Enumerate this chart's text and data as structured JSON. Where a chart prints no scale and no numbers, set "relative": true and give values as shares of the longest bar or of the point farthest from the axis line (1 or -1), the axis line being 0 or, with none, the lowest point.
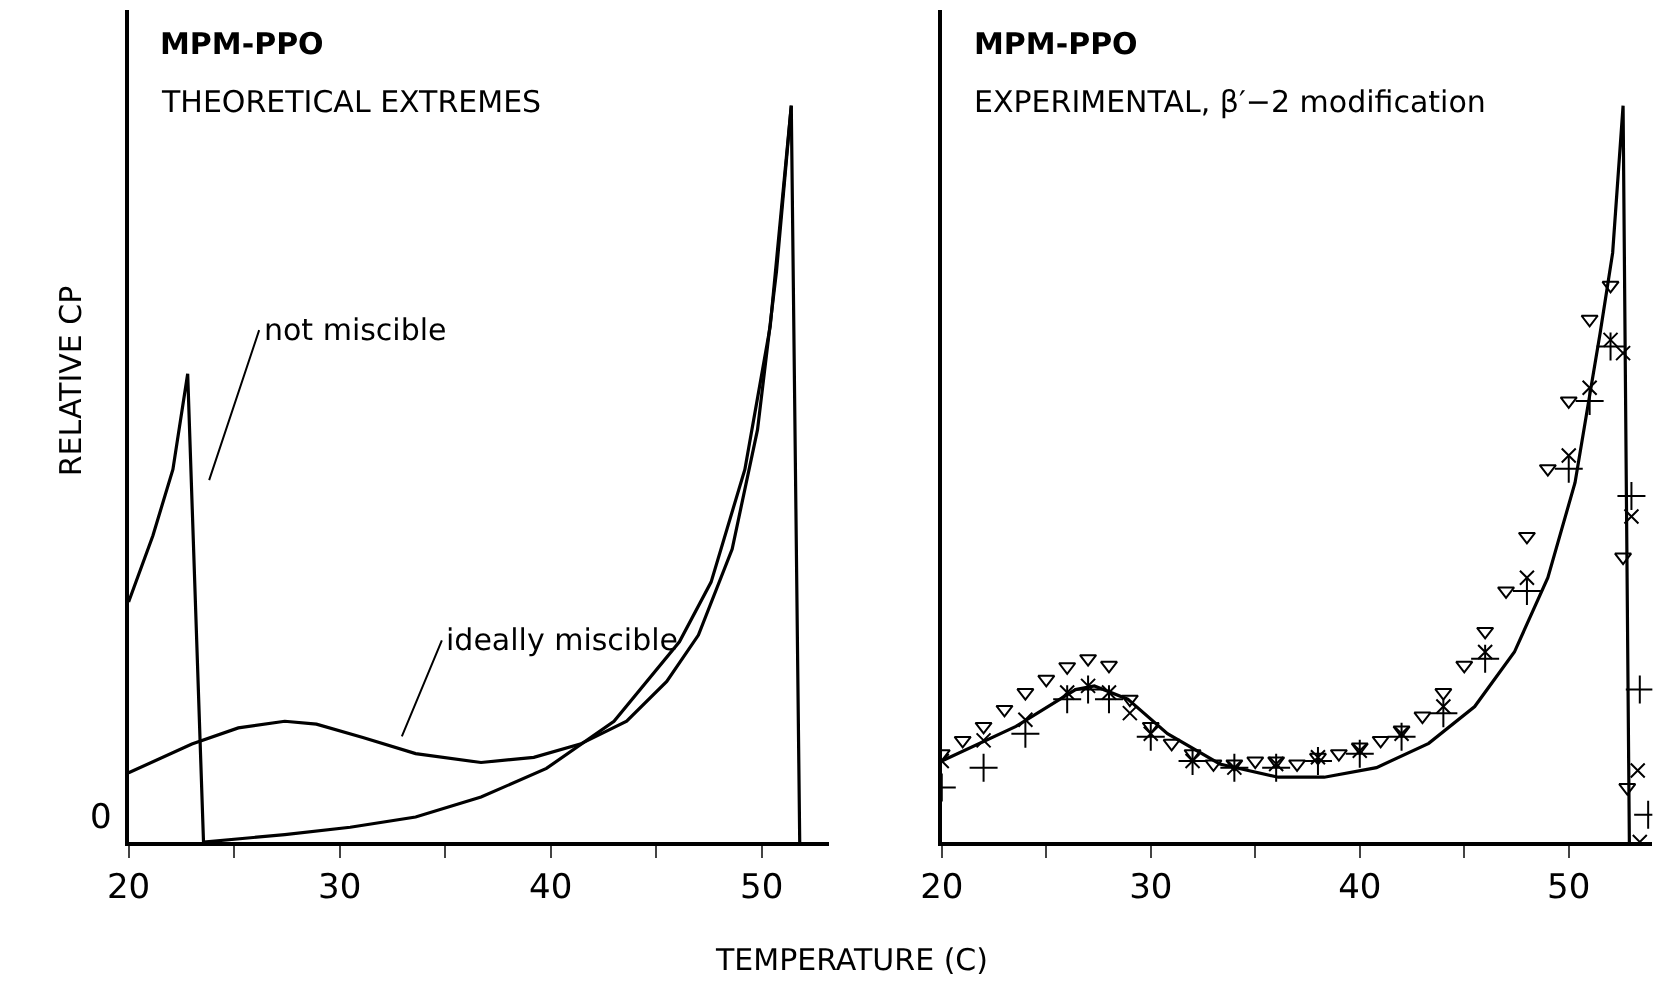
{
  "chart_data": [
    {
      "type": "line",
      "title": "MPM-PPO",
      "subtitle": "THEORETICAL EXTREMES",
      "xlabel": "TEMPERATURE (C)",
      "ylabel": "RELATIVE CP",
      "relative": true,
      "tick_labels": "x",
      "xlim": [
        20,
        53.2
      ],
      "xticks": [
        20,
        {
          "value": 25,
          "label": null
        },
        30,
        {
          "value": 35,
          "label": null
        },
        40,
        {
          "value": 45,
          "label": null
        },
        50
      ],
      "series": [
        {
          "color": "#000000",
          "marker": "none",
          "x": [
            20,
            21.15,
            22.1,
            22.8,
            23.55,
            27.4,
            30.5,
            33.6,
            36.7,
            39.8,
            43.0,
            46.1,
            47.6,
            49.2,
            50.4,
            51.4,
            51.8
          ],
          "values": [
            0.326,
            0.416,
            0.506,
            0.636,
            0.0,
            0.01,
            0.02,
            0.034,
            0.061,
            0.1,
            0.164,
            0.272,
            0.353,
            0.506,
            0.7,
            1.0,
            0.0
          ]
        },
        {
          "color": "#000000",
          "marker": "none",
          "x": [
            20,
            23.0,
            25.2,
            27.4,
            28.9,
            31.1,
            33.6,
            36.7,
            39.2,
            41.4,
            43.6,
            45.5,
            47.0,
            48.6,
            49.8,
            50.7,
            51.4
          ],
          "values": [
            0.094,
            0.133,
            0.155,
            0.164,
            0.16,
            0.142,
            0.12,
            0.108,
            0.115,
            0.133,
            0.164,
            0.218,
            0.281,
            0.398,
            0.56,
            0.775,
            1.0
          ]
        }
      ],
      "annotations": [
        "not miscible",
        "ideally miscible",
        "0"
      ]
    },
    {
      "type": "line",
      "title": "MPM-PPO",
      "subtitle": "EXPERIMENTAL, β′−2 modification",
      "relative": true,
      "tick_labels": "x",
      "xlim": [
        20,
        54
      ],
      "xticks": [
        20,
        {
          "value": 25,
          "label": null
        },
        30,
        {
          "value": 35,
          "label": null
        },
        40,
        {
          "value": 45,
          "label": null
        },
        50
      ],
      "series": [
        {
          "color": "#000000",
          "marker": "none",
          "x": [
            20,
            23.55,
            26.4,
            27.3,
            28.9,
            30.8,
            33.3,
            36.1,
            38.3,
            40.8,
            43.3,
            45.5,
            47.4,
            49.0,
            50.3,
            51.5,
            52.1,
            52.6,
            52.9
          ],
          "values": [
            0.11,
            0.157,
            0.207,
            0.212,
            0.194,
            0.147,
            0.106,
            0.088,
            0.088,
            0.101,
            0.134,
            0.184,
            0.258,
            0.359,
            0.488,
            0.691,
            0.8,
            1.0,
            0.0
          ]
        },
        {
          "type": "scatter",
          "color": "#000000",
          "marker": "triangle",
          "x": [
            20,
            21,
            22,
            23,
            24,
            25,
            26,
            27,
            28,
            29,
            30,
            31,
            32,
            33,
            34,
            35,
            36,
            37,
            38,
            39,
            40,
            41,
            42,
            43,
            44,
            45,
            46,
            47,
            48,
            49,
            50,
            51,
            52,
            52.6,
            52.8
          ],
          "values": [
            0.12,
            0.138,
            0.157,
            0.18,
            0.203,
            0.221,
            0.238,
            0.249,
            0.24,
            0.194,
            0.157,
            0.134,
            0.12,
            0.106,
            0.106,
            0.11,
            0.11,
            0.106,
            0.115,
            0.12,
            0.129,
            0.138,
            0.152,
            0.171,
            0.203,
            0.24,
            0.286,
            0.341,
            0.415,
            0.507,
            0.599,
            0.71,
            0.756,
            0.387,
            0.074
          ]
        },
        {
          "type": "scatter",
          "color": "#000000",
          "marker": "x",
          "x": [
            20,
            22,
            24,
            26,
            27,
            28,
            29,
            30,
            32,
            34,
            36,
            38,
            40,
            42,
            44,
            46,
            48,
            50,
            51,
            52,
            52.6,
            53.0,
            53.3,
            53.4
          ],
          "values": [
            0.11,
            0.138,
            0.166,
            0.203,
            0.212,
            0.203,
            0.175,
            0.147,
            0.11,
            0.101,
            0.106,
            0.115,
            0.124,
            0.147,
            0.184,
            0.258,
            0.359,
            0.525,
            0.617,
            0.682,
            0.664,
            0.442,
            0.097,
            0.0
          ]
        },
        {
          "type": "scatter",
          "color": "#000000",
          "marker": "cross",
          "x": [
            20,
            22,
            24,
            26,
            27,
            28,
            30,
            32,
            34,
            36,
            38,
            40,
            42,
            44,
            46,
            48,
            50,
            51,
            52,
            53.0,
            53.4,
            53.8
          ],
          "values": [
            0.074,
            0.101,
            0.147,
            0.194,
            0.207,
            0.194,
            0.143,
            0.11,
            0.101,
            0.101,
            0.11,
            0.12,
            0.143,
            0.175,
            0.249,
            0.341,
            0.507,
            0.599,
            0.673,
            0.47,
            0.207,
            0.037
          ]
        }
      ]
    }
  ]
}
